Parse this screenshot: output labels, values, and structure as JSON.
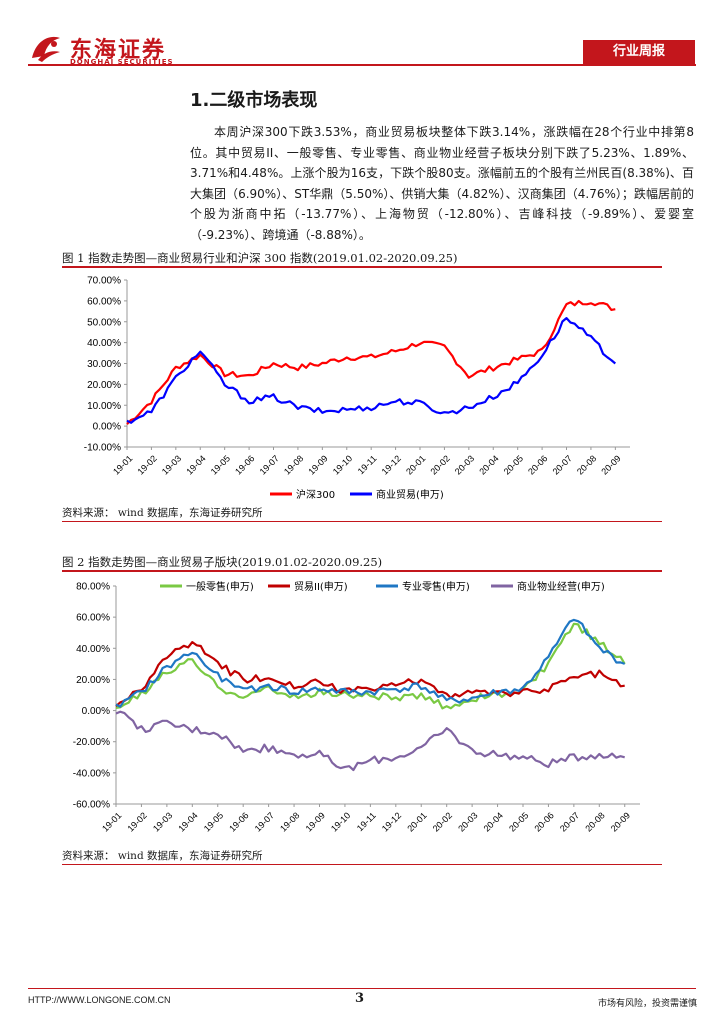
{
  "header": {
    "brand_cn": "东海证券",
    "brand_en": "DONGHAI SECURITIES",
    "tag": "行业周报"
  },
  "section": {
    "title": "1.二级市场表现",
    "paragraph": "本周沪深300下跌3.53%，商业贸易板块整体下跌3.14%，涨跌幅在28个行业中排第8位。其中贸易II、一般零售、专业零售、商业物业经营子板块分别下跌了5.23%、1.89%、3.71%和4.48%。上涨个股为16支，下跌个股80支。涨幅前五的个股有兰州民百(8.38%)、百大集团（6.90%）、ST华鼎（5.50%）、供销大集（4.82%）、汉商集团（4.76%）；跌幅居前的个股为浙商中拓（-13.77%）、上海物贸（-12.80%）、吉峰科技（-9.89%）、爱婴室（-9.23%）、跨境通（-8.88%）。"
  },
  "figure1": {
    "title": "图 1  指数走势图—商业贸易行业和沪深 300 指数(2019.01.02-2020.09.25)",
    "source": "资料来源：    wind 数据库，东海证券研究所"
  },
  "figure2": {
    "title": "图 2  指数走势图—商业贸易子版块(2019.01.02-2020.09.25)",
    "source": "资料来源：    wind 数据库，东海证券研究所"
  },
  "footer": {
    "url": "HTTP://WWW.LONGONE.COM.CN",
    "page": "3",
    "note": "市场有风险，投资需谨慎"
  },
  "chart_data": [
    {
      "type": "line",
      "title": "指数走势图—商业贸易行业和沪深300指数",
      "categories": [
        "19-01",
        "19-02",
        "19-03",
        "19-04",
        "19-05",
        "19-06",
        "19-07",
        "19-08",
        "19-09",
        "19-10",
        "19-11",
        "19-12",
        "20-01",
        "20-02",
        "20-03",
        "20-04",
        "20-05",
        "20-06",
        "20-07",
        "20-08",
        "20-09"
      ],
      "y_tick_labels": [
        "-10.00%",
        "0.00%",
        "10.00%",
        "20.00%",
        "30.00%",
        "40.00%",
        "50.00%",
        "60.00%",
        "70.00%"
      ],
      "ylim": [
        -10,
        70
      ],
      "series": [
        {
          "name": "沪深300",
          "color": "#ff0000",
          "values": [
            1,
            12,
            28,
            34,
            25,
            24,
            30,
            28,
            30,
            33,
            33,
            36,
            40,
            38,
            24,
            28,
            32,
            36,
            58,
            60,
            56
          ]
        },
        {
          "name": "商业贸易(申万)",
          "color": "#0000ff",
          "values": [
            2,
            7,
            23,
            36,
            20,
            12,
            14,
            9,
            7,
            8,
            9,
            12,
            11,
            6,
            9,
            14,
            21,
            34,
            52,
            42,
            30
          ]
        }
      ]
    },
    {
      "type": "line",
      "title": "指数走势图—商业贸易子版块",
      "categories": [
        "19-01",
        "19-02",
        "19-03",
        "19-04",
        "19-05",
        "19-06",
        "19-07",
        "19-08",
        "19-09",
        "19-10",
        "19-11",
        "19-12",
        "20-01",
        "20-02",
        "20-03",
        "20-04",
        "20-05",
        "20-06",
        "20-07",
        "20-08",
        "20-09"
      ],
      "y_tick_labels": [
        "-60.00%",
        "-40.00%",
        "-20.00%",
        "0.00%",
        "20.00%",
        "40.00%",
        "60.00%",
        "80.00%"
      ],
      "ylim": [
        -60,
        80
      ],
      "series": [
        {
          "name": "一般零售(申万)",
          "color": "#7ac943",
          "values": [
            2,
            10,
            25,
            32,
            15,
            10,
            14,
            8,
            12,
            10,
            10,
            8,
            9,
            2,
            8,
            10,
            12,
            30,
            55,
            45,
            30
          ]
        },
        {
          "name": "贸易II(申万)",
          "color": "#c00000",
          "values": [
            2,
            14,
            34,
            44,
            30,
            20,
            22,
            16,
            18,
            12,
            14,
            16,
            20,
            10,
            12,
            10,
            12,
            14,
            22,
            24,
            16
          ]
        },
        {
          "name": "专业零售(申万)",
          "color": "#1f77c4",
          "values": [
            2,
            12,
            28,
            38,
            22,
            12,
            16,
            12,
            14,
            12,
            12,
            14,
            16,
            6,
            8,
            12,
            14,
            34,
            60,
            40,
            30
          ]
        },
        {
          "name": "商业物业经营(申万)",
          "color": "#8064a2",
          "values": [
            0,
            -12,
            -8,
            -12,
            -14,
            -26,
            -24,
            -28,
            -28,
            -38,
            -32,
            -30,
            -24,
            -12,
            -26,
            -28,
            -30,
            -34,
            -30,
            -28,
            -30
          ]
        }
      ]
    }
  ]
}
